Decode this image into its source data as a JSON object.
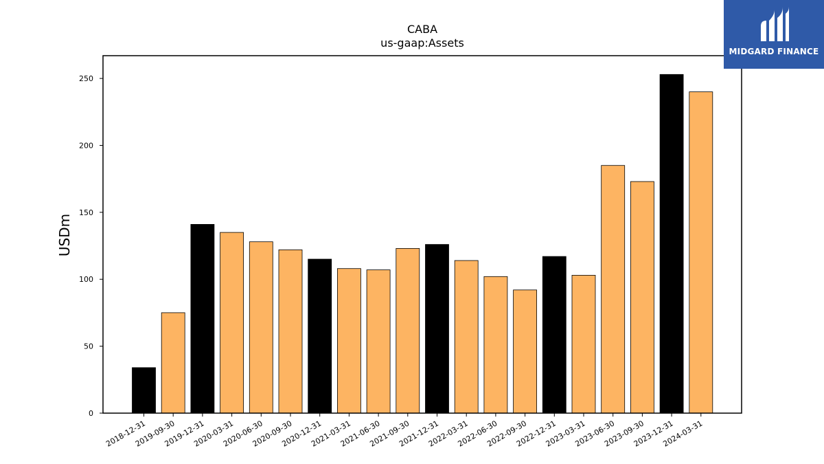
{
  "chart_data": {
    "type": "bar",
    "title": "CABA",
    "subtitle": "us-gaap:Assets",
    "xlabel": "",
    "ylabel": "USDm",
    "ylim": [
      0,
      267
    ],
    "yticks": [
      0,
      50,
      100,
      150,
      200,
      250
    ],
    "grid": false,
    "categories": [
      "2018-12-31",
      "2019-09-30",
      "2019-12-31",
      "2020-03-31",
      "2020-06-30",
      "2020-09-30",
      "2020-12-31",
      "2021-03-31",
      "2021-06-30",
      "2021-09-30",
      "2021-12-31",
      "2022-03-31",
      "2022-06-30",
      "2022-09-30",
      "2022-12-31",
      "2023-03-31",
      "2023-06-30",
      "2023-09-30",
      "2023-12-31",
      "2024-03-31"
    ],
    "values": [
      34,
      75,
      141,
      135,
      128,
      122,
      115,
      108,
      107,
      123,
      126,
      114,
      102,
      92,
      117,
      103,
      185,
      173,
      253,
      240
    ],
    "bar_colors": [
      "#000000",
      "#fdb462",
      "#000000",
      "#fdb462",
      "#fdb462",
      "#fdb462",
      "#000000",
      "#fdb462",
      "#fdb462",
      "#fdb462",
      "#000000",
      "#fdb462",
      "#fdb462",
      "#fdb462",
      "#000000",
      "#fdb462",
      "#fdb462",
      "#fdb462",
      "#000000",
      "#fdb462"
    ]
  },
  "logo": {
    "text": "MIDGARD FINANCE",
    "background": "#2f5aa8"
  }
}
